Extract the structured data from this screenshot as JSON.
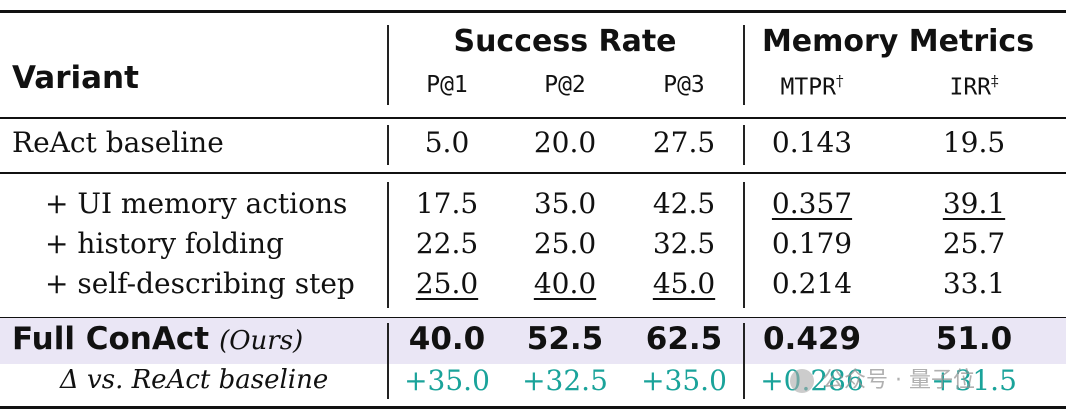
{
  "header": {
    "variant": "Variant",
    "group_success": "Success Rate",
    "group_memory": "Memory Metrics",
    "cols": [
      "P@1",
      "P@2",
      "P@3",
      "MTPR",
      "IRR"
    ],
    "mtpr_mark": "†",
    "irr_mark": "‡"
  },
  "baseline": {
    "label": "ReAct baseline",
    "values": [
      "5.0",
      "20.0",
      "27.5",
      "0.143",
      "19.5"
    ]
  },
  "ablations": [
    {
      "label": "+ UI memory actions",
      "values": [
        "17.5",
        "35.0",
        "42.5",
        "0.357",
        "39.1"
      ],
      "underline": [
        false,
        false,
        false,
        true,
        true
      ]
    },
    {
      "label": "+ history folding",
      "values": [
        "22.5",
        "25.0",
        "32.5",
        "0.179",
        "25.7"
      ],
      "underline": [
        false,
        false,
        false,
        false,
        false
      ]
    },
    {
      "label": "+ self-describing step",
      "values": [
        "25.0",
        "40.0",
        "45.0",
        "0.214",
        "33.1"
      ],
      "underline": [
        true,
        true,
        true,
        false,
        false
      ]
    }
  ],
  "full": {
    "label": "Full ConAct",
    "ours": "(Ours)",
    "values": [
      "40.0",
      "52.5",
      "62.5",
      "0.429",
      "51.0"
    ]
  },
  "delta": {
    "label": "Δ vs. ReAct baseline",
    "values": [
      "+35.0",
      "+32.5",
      "+35.0",
      "+0.286",
      "+31.5"
    ]
  },
  "watermark": "公众号 · 量子位",
  "colors": {
    "delta": "#1aa39a",
    "highlight": "#eae6f5"
  }
}
